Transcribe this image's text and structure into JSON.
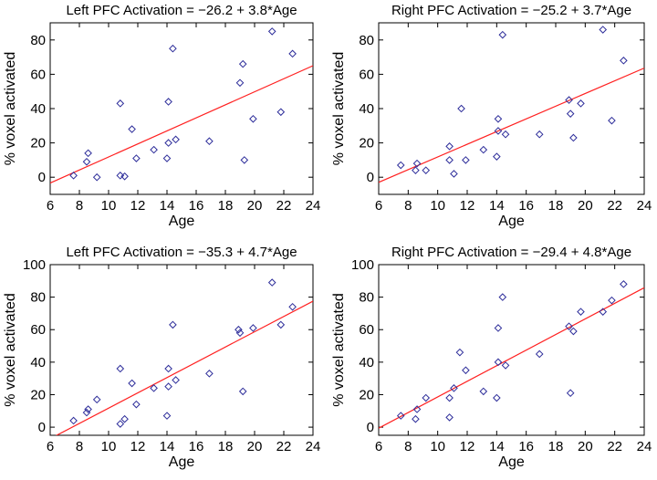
{
  "chart_data": [
    {
      "type": "scatter",
      "title": "Left PFC Activation = −26.2 + 3.8*Age",
      "xlabel": "Age",
      "ylabel": "% voxel activated",
      "xlim": [
        6,
        24
      ],
      "ylim": [
        -10,
        90
      ],
      "xticks": [
        6,
        8,
        10,
        12,
        14,
        16,
        18,
        20,
        22,
        24
      ],
      "yticks": [
        0,
        20,
        40,
        60,
        80
      ],
      "fit": {
        "intercept": -26.2,
        "slope": 3.8
      },
      "points": [
        [
          7.6,
          1
        ],
        [
          8.5,
          9
        ],
        [
          8.6,
          14
        ],
        [
          9.2,
          0
        ],
        [
          10.8,
          43
        ],
        [
          10.8,
          1
        ],
        [
          11.1,
          0.5
        ],
        [
          11.6,
          28
        ],
        [
          11.9,
          11
        ],
        [
          13.1,
          16
        ],
        [
          14.0,
          11
        ],
        [
          14.1,
          20
        ],
        [
          14.1,
          44
        ],
        [
          14.4,
          75
        ],
        [
          14.6,
          22
        ],
        [
          16.9,
          21
        ],
        [
          19.0,
          55
        ],
        [
          19.2,
          66
        ],
        [
          19.3,
          10
        ],
        [
          19.9,
          34
        ],
        [
          21.2,
          85
        ],
        [
          21.8,
          38
        ],
        [
          22.6,
          72
        ]
      ]
    },
    {
      "type": "scatter",
      "title": "Right PFC Activation = −25.2 + 3.7*Age",
      "xlabel": "Age",
      "ylabel": "% voxel activated",
      "xlim": [
        6,
        24
      ],
      "ylim": [
        -10,
        90
      ],
      "xticks": [
        6,
        8,
        10,
        12,
        14,
        16,
        18,
        20,
        22,
        24
      ],
      "yticks": [
        0,
        20,
        40,
        60,
        80
      ],
      "fit": {
        "intercept": -25.2,
        "slope": 3.7
      },
      "points": [
        [
          7.5,
          7
        ],
        [
          8.5,
          4
        ],
        [
          8.6,
          8
        ],
        [
          9.2,
          4
        ],
        [
          10.8,
          10
        ],
        [
          10.8,
          18
        ],
        [
          11.1,
          2
        ],
        [
          11.6,
          40
        ],
        [
          11.9,
          10
        ],
        [
          13.1,
          16
        ],
        [
          14.0,
          12
        ],
        [
          14.1,
          27
        ],
        [
          14.1,
          34
        ],
        [
          14.4,
          83
        ],
        [
          14.6,
          25
        ],
        [
          16.9,
          25
        ],
        [
          18.9,
          45
        ],
        [
          19.0,
          37
        ],
        [
          19.2,
          23
        ],
        [
          19.7,
          43
        ],
        [
          21.2,
          86
        ],
        [
          21.8,
          33
        ],
        [
          22.6,
          68
        ]
      ]
    },
    {
      "type": "scatter",
      "title": "Left PFC Activation = −35.3 + 4.7*Age",
      "xlabel": "Age",
      "ylabel": "% voxel activated",
      "xlim": [
        6,
        24
      ],
      "ylim": [
        -5,
        100
      ],
      "xticks": [
        6,
        8,
        10,
        12,
        14,
        16,
        18,
        20,
        22,
        24
      ],
      "yticks": [
        0,
        20,
        40,
        60,
        80,
        100
      ],
      "fit": {
        "intercept": -35.3,
        "slope": 4.7
      },
      "points": [
        [
          7.6,
          4
        ],
        [
          8.5,
          9
        ],
        [
          8.6,
          11
        ],
        [
          9.2,
          17
        ],
        [
          10.8,
          36
        ],
        [
          10.8,
          2
        ],
        [
          11.1,
          5
        ],
        [
          11.6,
          27
        ],
        [
          11.9,
          14
        ],
        [
          13.1,
          24
        ],
        [
          14.0,
          7
        ],
        [
          14.1,
          25
        ],
        [
          14.1,
          36
        ],
        [
          14.4,
          63
        ],
        [
          14.6,
          29
        ],
        [
          16.9,
          33
        ],
        [
          18.9,
          60
        ],
        [
          19.0,
          58
        ],
        [
          19.2,
          22
        ],
        [
          19.9,
          61
        ],
        [
          21.2,
          89
        ],
        [
          21.8,
          63
        ],
        [
          22.6,
          74
        ]
      ]
    },
    {
      "type": "scatter",
      "title": "Right PFC Activation = −29.4 + 4.8*Age",
      "xlabel": "Age",
      "ylabel": "% voxel activated",
      "xlim": [
        6,
        24
      ],
      "ylim": [
        -5,
        100
      ],
      "xticks": [
        6,
        8,
        10,
        12,
        14,
        16,
        18,
        20,
        22,
        24
      ],
      "yticks": [
        0,
        20,
        40,
        60,
        80,
        100
      ],
      "fit": {
        "intercept": -29.4,
        "slope": 4.8
      },
      "points": [
        [
          7.5,
          7
        ],
        [
          8.5,
          5
        ],
        [
          8.6,
          11
        ],
        [
          9.2,
          18
        ],
        [
          10.8,
          6
        ],
        [
          10.8,
          18
        ],
        [
          11.1,
          24
        ],
        [
          11.5,
          46
        ],
        [
          11.9,
          35
        ],
        [
          13.1,
          22
        ],
        [
          14.0,
          18
        ],
        [
          14.1,
          61
        ],
        [
          14.1,
          40
        ],
        [
          14.4,
          80
        ],
        [
          14.6,
          38
        ],
        [
          16.9,
          45
        ],
        [
          18.9,
          62
        ],
        [
          19.0,
          21
        ],
        [
          19.2,
          59
        ],
        [
          19.7,
          71
        ],
        [
          21.2,
          71
        ],
        [
          21.8,
          78
        ],
        [
          22.6,
          88
        ]
      ]
    }
  ]
}
